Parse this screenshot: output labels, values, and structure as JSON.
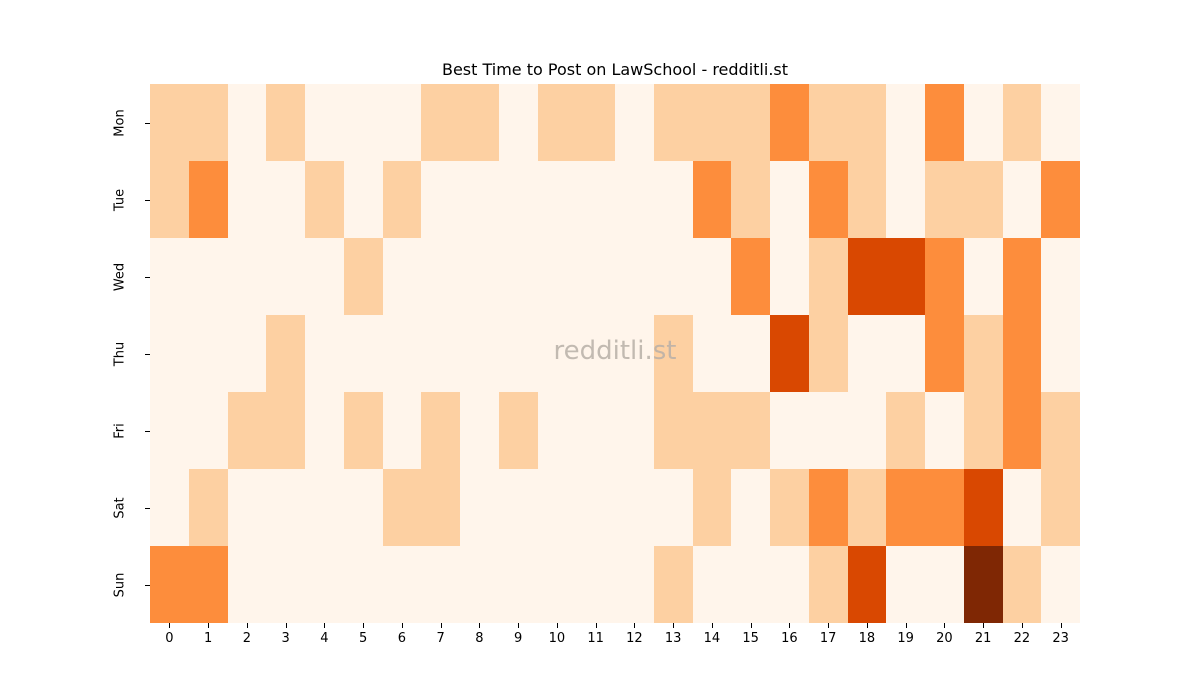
{
  "chart_data": {
    "type": "heatmap",
    "title": "Best Time to Post on LawSchool - redditli.st",
    "xlabel": "",
    "ylabel": "",
    "x_categories": [
      "0",
      "1",
      "2",
      "3",
      "4",
      "5",
      "6",
      "7",
      "8",
      "9",
      "10",
      "11",
      "12",
      "13",
      "14",
      "15",
      "16",
      "17",
      "18",
      "19",
      "20",
      "21",
      "22",
      "23"
    ],
    "y_categories": [
      "Mon",
      "Tue",
      "Wed",
      "Thu",
      "Fri",
      "Sat",
      "Sun"
    ],
    "colormap": "Oranges",
    "level_colors": [
      "#fff5eb",
      "#fdd0a2",
      "#fd8d3c",
      "#d94801",
      "#7f2704"
    ],
    "values": [
      [
        1,
        1,
        0,
        1,
        0,
        0,
        0,
        1,
        1,
        0,
        1,
        1,
        0,
        1,
        1,
        1,
        2,
        1,
        1,
        0,
        2,
        0,
        1,
        0
      ],
      [
        1,
        2,
        0,
        0,
        1,
        0,
        1,
        0,
        0,
        0,
        0,
        0,
        0,
        0,
        2,
        1,
        0,
        2,
        1,
        0,
        1,
        1,
        0,
        2
      ],
      [
        0,
        0,
        0,
        0,
        0,
        1,
        0,
        0,
        0,
        0,
        0,
        0,
        0,
        0,
        0,
        2,
        0,
        1,
        3,
        3,
        2,
        0,
        2,
        0
      ],
      [
        0,
        0,
        0,
        1,
        0,
        0,
        0,
        0,
        0,
        0,
        0,
        0,
        0,
        1,
        0,
        0,
        3,
        1,
        0,
        0,
        2,
        1,
        2,
        0
      ],
      [
        0,
        0,
        1,
        1,
        0,
        1,
        0,
        1,
        0,
        1,
        0,
        0,
        0,
        1,
        1,
        1,
        0,
        0,
        0,
        1,
        0,
        1,
        2,
        1
      ],
      [
        0,
        1,
        0,
        0,
        0,
        0,
        1,
        1,
        0,
        0,
        0,
        0,
        0,
        0,
        1,
        0,
        1,
        2,
        1,
        2,
        2,
        3,
        0,
        1
      ],
      [
        2,
        2,
        0,
        0,
        0,
        0,
        0,
        0,
        0,
        0,
        0,
        0,
        0,
        1,
        0,
        0,
        0,
        1,
        3,
        0,
        0,
        4,
        1,
        0
      ]
    ],
    "legend": "none",
    "grid": false
  },
  "watermark": "redditli.st"
}
